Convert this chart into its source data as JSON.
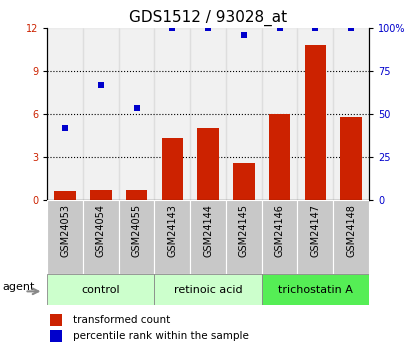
{
  "title": "GDS1512 / 93028_at",
  "categories": [
    "GSM24053",
    "GSM24054",
    "GSM24055",
    "GSM24143",
    "GSM24144",
    "GSM24145",
    "GSM24146",
    "GSM24147",
    "GSM24148"
  ],
  "bar_values": [
    0.6,
    0.7,
    0.7,
    4.3,
    5.0,
    2.6,
    6.0,
    10.8,
    5.8
  ],
  "dot_values": [
    5.0,
    8.0,
    6.4,
    12.0,
    12.0,
    11.5,
    12.0,
    12.0,
    12.0
  ],
  "bar_color": "#cc2200",
  "dot_color": "#0000cc",
  "ylim_left": [
    0,
    12
  ],
  "ylim_right": [
    0,
    100
  ],
  "yticks_left": [
    0,
    3,
    6,
    9,
    12
  ],
  "ytick_labels_left": [
    "0",
    "3",
    "6",
    "9",
    "12"
  ],
  "yticks_right": [
    0,
    25,
    50,
    75,
    100
  ],
  "ytick_labels_right": [
    "0",
    "25",
    "50",
    "75",
    "100%"
  ],
  "groups": [
    {
      "label": "control",
      "start": 0,
      "end": 3,
      "color": "#ccffcc"
    },
    {
      "label": "retinoic acid",
      "start": 3,
      "end": 6,
      "color": "#ccffcc"
    },
    {
      "label": "trichostatin A",
      "start": 6,
      "end": 9,
      "color": "#55ee55"
    }
  ],
  "agent_label": "agent",
  "legend_bar_label": "transformed count",
  "legend_dot_label": "percentile rank within the sample",
  "title_fontsize": 11,
  "tick_fontsize": 7,
  "group_fontsize": 8,
  "legend_fontsize": 7.5,
  "xtick_bg_color": "#c8c8c8"
}
